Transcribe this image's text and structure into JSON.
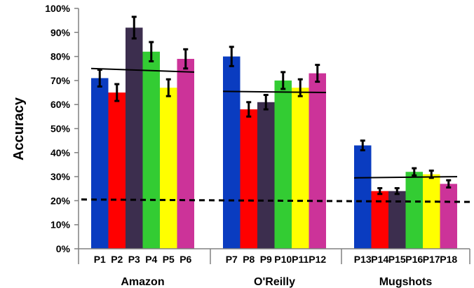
{
  "chart_data": {
    "type": "bar",
    "title": "",
    "xlabel": "",
    "ylabel": "Accuracy",
    "ylim": [
      0,
      100
    ],
    "y_ticks": [
      "0%",
      "10%",
      "20%",
      "30%",
      "40%",
      "50%",
      "60%",
      "70%",
      "80%",
      "90%",
      "100%"
    ],
    "y_tick_values": [
      0,
      10,
      20,
      30,
      40,
      50,
      60,
      70,
      80,
      90,
      100
    ],
    "grid": false,
    "legend": "none",
    "baseline": 20,
    "groups": [
      {
        "name": "Amazon",
        "mean_line": [
          75,
          73.5
        ],
        "bars": [
          {
            "label": "P1",
            "value": 71,
            "err": 3.5,
            "color": "#0a3cc0"
          },
          {
            "label": "P2",
            "value": 65,
            "err": 3.5,
            "color": "#ff0000"
          },
          {
            "label": "P3",
            "value": 92,
            "err": 4.5,
            "color": "#3c2e4e"
          },
          {
            "label": "P4",
            "value": 82,
            "err": 4,
            "color": "#33cc33"
          },
          {
            "label": "P5",
            "value": 67,
            "err": 3.5,
            "color": "#ffff00"
          },
          {
            "label": "P6",
            "value": 79,
            "err": 4,
            "color": "#cc3399"
          }
        ]
      },
      {
        "name": "O'Reilly",
        "mean_line": [
          65.5,
          65
        ],
        "bars": [
          {
            "label": "P7",
            "value": 80,
            "err": 4,
            "color": "#0a3cc0"
          },
          {
            "label": "P8",
            "value": 58,
            "err": 3,
            "color": "#ff0000"
          },
          {
            "label": "P9",
            "value": 61,
            "err": 3,
            "color": "#3c2e4e"
          },
          {
            "label": "P10",
            "value": 70,
            "err": 3.5,
            "color": "#33cc33"
          },
          {
            "label": "P11",
            "value": 67,
            "err": 3.5,
            "color": "#ffff00"
          },
          {
            "label": "P12",
            "value": 73,
            "err": 3.5,
            "color": "#cc3399"
          }
        ]
      },
      {
        "name": "Mugshots",
        "mean_line": [
          29.5,
          30
        ],
        "bars": [
          {
            "label": "P13",
            "value": 43,
            "err": 2,
            "color": "#0a3cc0"
          },
          {
            "label": "P14",
            "value": 24,
            "err": 1.2,
            "color": "#ff0000"
          },
          {
            "label": "P15",
            "value": 24,
            "err": 1.2,
            "color": "#3c2e4e"
          },
          {
            "label": "P16",
            "value": 32,
            "err": 1.5,
            "color": "#33cc33"
          },
          {
            "label": "P17",
            "value": 31,
            "err": 1.5,
            "color": "#ffff00"
          },
          {
            "label": "P18",
            "value": 27,
            "err": 1.5,
            "color": "#cc3399"
          }
        ]
      }
    ]
  }
}
